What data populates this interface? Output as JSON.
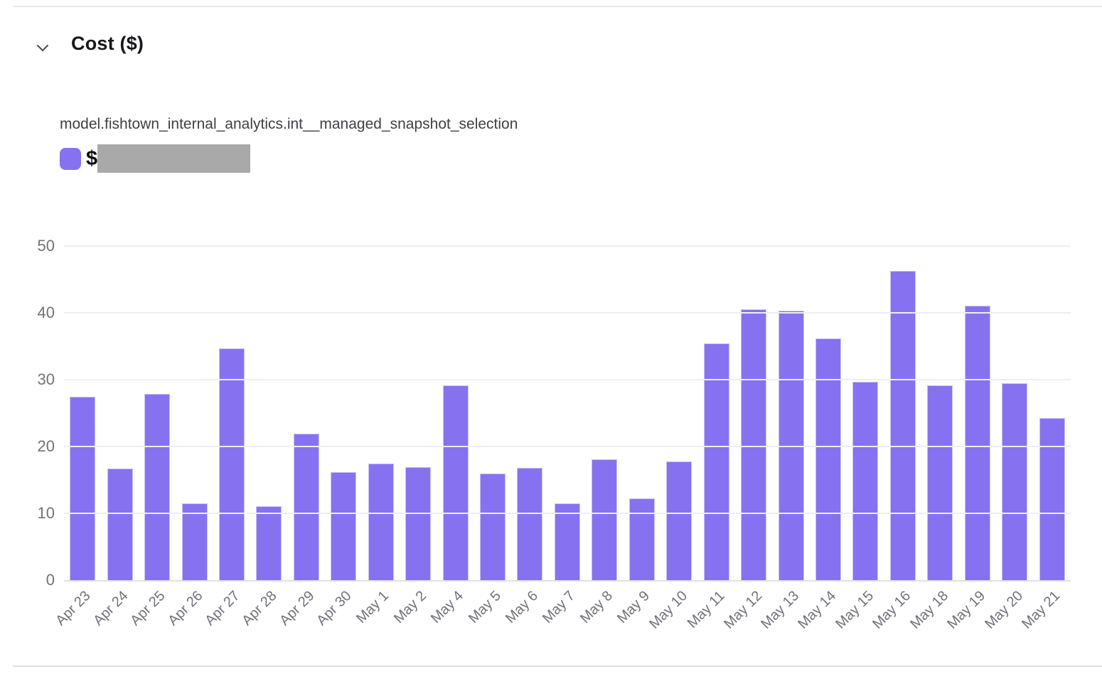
{
  "header": {
    "title": "Cost ($)",
    "collapse_icon": "chevron-down"
  },
  "chart_header": {
    "series_name": "model.fishtown_internal_analytics.int__managed_snapshot_selection",
    "legend": {
      "prefix": "$",
      "value_redacted": true
    }
  },
  "colors": {
    "bar": "#8672f0",
    "bar_border": "#cbc2f2",
    "legend_swatch": "#8672f0",
    "redaction": "#a9a9a9",
    "gridline": "#eeeef1",
    "axis_line": "#e0e1e5",
    "tick_label": "#71717a",
    "title": "#17171c",
    "subtitle": "#3f3f46"
  },
  "chart_data": {
    "type": "bar",
    "title": "Cost ($)",
    "series_label": "model.fishtown_internal_analytics.int__managed_snapshot_selection",
    "categories": [
      "Apr 23",
      "Apr 24",
      "Apr 25",
      "Apr 26",
      "Apr 27",
      "Apr 28",
      "Apr 29",
      "Apr 30",
      "May 1",
      "May 2",
      "May 4",
      "May 5",
      "May 6",
      "May 7",
      "May 8",
      "May 9",
      "May 10",
      "May 11",
      "May 12",
      "May 13",
      "May 14",
      "May 15",
      "May 16",
      "May 18",
      "May 19",
      "May 20",
      "May 21"
    ],
    "values": [
      27.4,
      16.7,
      27.9,
      11.5,
      34.7,
      11.1,
      21.9,
      16.2,
      17.4,
      16.9,
      29.1,
      16.0,
      16.8,
      11.5,
      18.1,
      12.2,
      17.8,
      35.4,
      40.5,
      40.3,
      36.2,
      29.7,
      46.3,
      29.1,
      41.1,
      29.5,
      24.3
    ],
    "xlabel": "",
    "ylabel": "",
    "ylim": [
      0,
      50
    ],
    "yticks": [
      0,
      10,
      20,
      30,
      40,
      50
    ],
    "grid": true,
    "legend_position": "top-left",
    "bar_color": "#8672f0",
    "xtick_rotation": -45
  }
}
